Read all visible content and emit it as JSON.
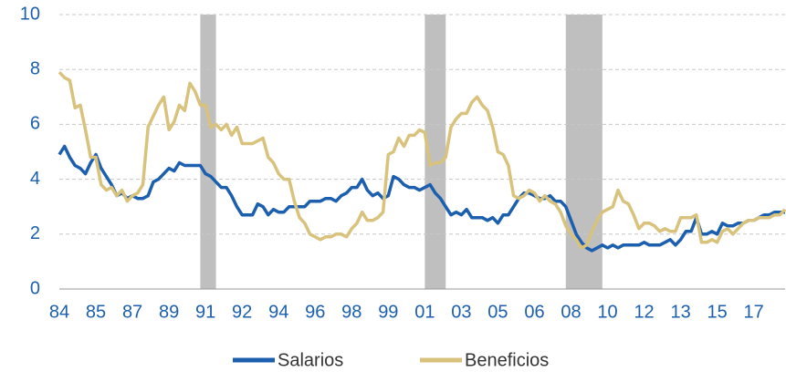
{
  "chart_data": {
    "type": "line",
    "categories": [
      "84",
      null,
      null,
      null,
      null,
      null,
      null,
      "85",
      null,
      null,
      null,
      null,
      null,
      null,
      "87",
      null,
      null,
      null,
      null,
      null,
      null,
      "89",
      null,
      null,
      null,
      null,
      null,
      null,
      "91",
      null,
      null,
      null,
      null,
      null,
      null,
      "92",
      null,
      null,
      null,
      null,
      null,
      null,
      "94",
      null,
      null,
      null,
      null,
      null,
      null,
      "96",
      null,
      null,
      null,
      null,
      null,
      null,
      "98",
      null,
      null,
      null,
      null,
      null,
      null,
      "99",
      null,
      null,
      null,
      null,
      null,
      null,
      "01",
      null,
      null,
      null,
      null,
      null,
      null,
      "03",
      null,
      null,
      null,
      null,
      null,
      null,
      "05",
      null,
      null,
      null,
      null,
      null,
      null,
      "06",
      null,
      null,
      null,
      null,
      null,
      null,
      "08",
      null,
      null,
      null,
      null,
      null,
      null,
      "10",
      null,
      null,
      null,
      null,
      null,
      null,
      "12",
      null,
      null,
      null,
      null,
      null,
      null,
      "13",
      null,
      null,
      null,
      null,
      null,
      null,
      "15",
      null,
      null,
      null,
      null,
      null,
      null,
      "17",
      null,
      null,
      null,
      null,
      null,
      null
    ],
    "series": [
      {
        "name": "Salarios",
        "color": "#1b5fae",
        "values": [
          4.9,
          5.2,
          4.8,
          4.5,
          4.4,
          4.2,
          4.6,
          4.9,
          4.4,
          4.1,
          3.8,
          3.4,
          3.5,
          3.3,
          3.4,
          3.3,
          3.3,
          3.4,
          3.9,
          4.0,
          4.2,
          4.4,
          4.3,
          4.6,
          4.5,
          4.5,
          4.5,
          4.5,
          4.2,
          4.1,
          3.9,
          3.7,
          3.7,
          3.4,
          3.0,
          2.7,
          2.7,
          2.7,
          3.1,
          3.0,
          2.7,
          2.9,
          2.8,
          2.8,
          3.0,
          3.0,
          3.0,
          3.0,
          3.2,
          3.2,
          3.2,
          3.3,
          3.3,
          3.2,
          3.4,
          3.5,
          3.7,
          3.7,
          4.0,
          3.6,
          3.4,
          3.5,
          3.3,
          3.4,
          4.1,
          4.0,
          3.8,
          3.7,
          3.7,
          3.6,
          3.7,
          3.8,
          3.5,
          3.3,
          3.0,
          2.7,
          2.8,
          2.7,
          2.9,
          2.6,
          2.6,
          2.6,
          2.5,
          2.6,
          2.4,
          2.7,
          2.7,
          3.0,
          3.3,
          3.5,
          3.5,
          3.4,
          3.3,
          3.3,
          3.4,
          3.2,
          3.2,
          3.0,
          2.5,
          2.0,
          1.7,
          1.5,
          1.4,
          1.5,
          1.6,
          1.5,
          1.6,
          1.5,
          1.6,
          1.6,
          1.6,
          1.6,
          1.7,
          1.6,
          1.6,
          1.6,
          1.7,
          1.8,
          1.6,
          1.8,
          2.1,
          2.1,
          2.6,
          2.0,
          2.0,
          2.1,
          2.0,
          2.4,
          2.3,
          2.3,
          2.4,
          2.4,
          2.5,
          2.5,
          2.6,
          2.7,
          2.7,
          2.8,
          2.8,
          2.8
        ]
      },
      {
        "name": "Beneficios",
        "color": "#d8c27c",
        "values": [
          7.9,
          7.7,
          7.6,
          6.6,
          6.7,
          5.8,
          4.8,
          4.8,
          3.8,
          3.6,
          3.7,
          3.4,
          3.6,
          3.2,
          3.4,
          3.5,
          3.8,
          5.9,
          6.3,
          6.7,
          7.0,
          5.8,
          6.1,
          6.7,
          6.5,
          7.5,
          7.2,
          6.7,
          6.7,
          5.9,
          6.0,
          5.8,
          6.0,
          5.6,
          5.9,
          5.3,
          5.3,
          5.3,
          5.4,
          5.5,
          4.8,
          4.6,
          4.2,
          4.0,
          4.0,
          3.2,
          2.6,
          2.4,
          2.0,
          1.9,
          1.8,
          1.9,
          1.9,
          2.0,
          2.0,
          1.9,
          2.2,
          2.4,
          2.8,
          2.5,
          2.5,
          2.6,
          2.8,
          4.9,
          5.0,
          5.5,
          5.2,
          5.6,
          5.6,
          5.8,
          5.7,
          4.5,
          4.6,
          4.6,
          4.8,
          5.9,
          6.2,
          6.4,
          6.4,
          6.8,
          7.0,
          6.7,
          6.5,
          5.9,
          5.0,
          4.9,
          4.5,
          3.4,
          3.3,
          3.4,
          3.6,
          3.5,
          3.2,
          3.4,
          3.2,
          3.1,
          2.8,
          2.3,
          2.0,
          1.8,
          1.5,
          1.6,
          2.1,
          2.5,
          2.8,
          2.9,
          3.0,
          3.6,
          3.2,
          3.1,
          2.7,
          2.2,
          2.4,
          2.4,
          2.3,
          2.1,
          2.2,
          2.1,
          2.1,
          2.6,
          2.6,
          2.6,
          2.7,
          1.7,
          1.7,
          1.8,
          1.7,
          2.1,
          2.2,
          2.0,
          2.2,
          2.4,
          2.5,
          2.5,
          2.6,
          2.6,
          2.6,
          2.7,
          2.7,
          2.9
        ]
      }
    ],
    "shaded_periods": [
      {
        "start": 27,
        "end": 30
      },
      {
        "start": 70,
        "end": 74
      },
      {
        "start": 97,
        "end": 104
      }
    ],
    "shade_color": "#bfbfbf",
    "ylim": [
      0,
      10
    ],
    "yticks": [
      0,
      2,
      4,
      6,
      8,
      10
    ],
    "grid": true,
    "legend": "bottom"
  }
}
